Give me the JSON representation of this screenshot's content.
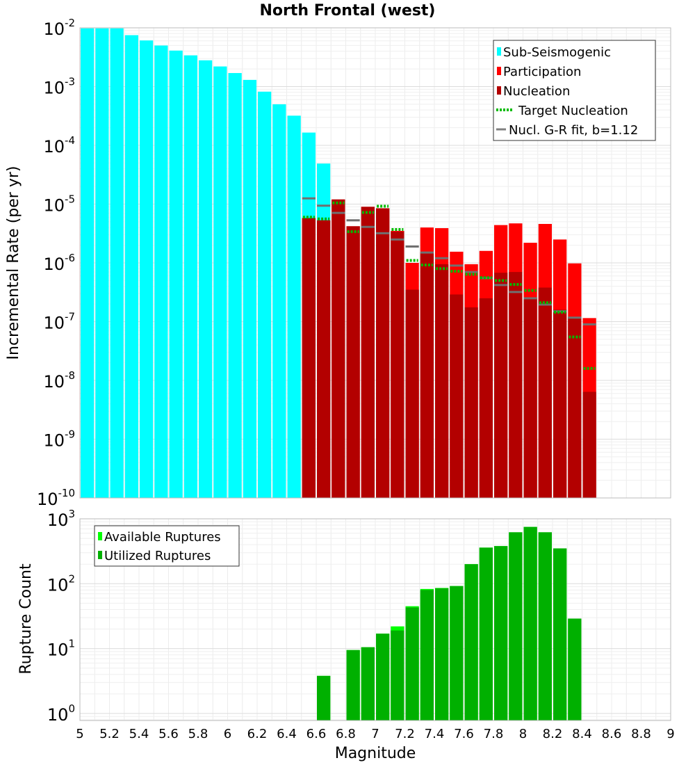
{
  "chart_data": [
    {
      "type": "bar",
      "title": "North Frontal (west)",
      "xlabel": "",
      "ylabel": "Incremental Rate (per yr)",
      "xlim": [
        5,
        9
      ],
      "ylim": [
        1e-10,
        0.01
      ],
      "yscale": "log",
      "ytick_base": "10",
      "ytick_exponents": [
        "-2",
        "-3",
        "-4",
        "-5",
        "-6",
        "-7",
        "-8",
        "-9",
        "-10"
      ],
      "legend": [
        {
          "label": "Sub-Seismogenic",
          "color": "#00ffff",
          "style": "bar"
        },
        {
          "label": "Participation",
          "color": "#ff0000",
          "style": "bar"
        },
        {
          "label": "Nucleation",
          "color": "#b30000",
          "style": "bar"
        },
        {
          "label": "Target Nucleation",
          "color": "#00bb00",
          "style": "dotted"
        },
        {
          "label": "Nucl. G-R fit, b=1.12",
          "color": "#808080",
          "style": "line"
        }
      ],
      "subseismogenic": {
        "x": [
          5.05,
          5.15,
          5.25,
          5.35,
          5.45,
          5.55,
          5.65,
          5.75,
          5.85,
          5.95,
          6.05,
          6.15,
          6.25,
          6.35,
          6.45,
          6.55,
          6.65
        ],
        "values": [
          0.0098,
          0.0098,
          0.0098,
          0.0075,
          0.0061,
          0.005,
          0.0041,
          0.0034,
          0.0028,
          0.0022,
          0.0017,
          0.0013,
          0.00082,
          0.0005,
          0.00032,
          0.000165,
          4.9e-05
        ]
      },
      "participation": {
        "x": [
          6.55,
          6.65,
          6.75,
          6.85,
          6.95,
          7.05,
          7.15,
          7.25,
          7.35,
          7.45,
          7.55,
          7.65,
          7.75,
          7.85,
          7.95,
          8.05,
          8.15,
          8.25,
          8.35,
          8.45
        ],
        "values": [
          5.8e-06,
          5.3e-06,
          1.2e-05,
          4.2e-06,
          9e-06,
          8.5e-06,
          3.5e-06,
          1e-06,
          4e-06,
          3.9e-06,
          1.55e-06,
          9.5e-07,
          1.6e-06,
          4.4e-06,
          4.7e-06,
          2.2e-06,
          4.6e-06,
          2.5e-06,
          9.8e-07,
          1.15e-07
        ]
      },
      "nucleation": {
        "x": [
          6.55,
          6.65,
          6.75,
          6.85,
          6.95,
          7.05,
          7.15,
          7.25,
          7.35,
          7.45,
          7.55,
          7.65,
          7.75,
          7.85,
          7.95,
          8.05,
          8.15,
          8.25,
          8.35,
          8.45
        ],
        "values": [
          5.8e-06,
          5.3e-06,
          1.2e-05,
          4.2e-06,
          9e-06,
          8.5e-06,
          3.4e-06,
          3.5e-07,
          1.5e-06,
          9.5e-07,
          2.9e-07,
          1.75e-07,
          2.5e-07,
          6.8e-07,
          7e-07,
          2.5e-07,
          3.8e-07,
          1.6e-07,
          1.2e-07,
          6.4e-09
        ]
      },
      "target_nucleation": {
        "x": [
          6.55,
          6.65,
          6.75,
          6.85,
          6.95,
          7.05,
          7.15,
          7.25,
          7.35,
          7.45,
          7.55,
          7.65,
          7.75,
          7.85,
          7.95,
          8.05,
          8.15,
          8.25,
          8.35,
          8.45
        ],
        "values": [
          6e-06,
          5.6e-06,
          1.05e-05,
          3.4e-06,
          7.2e-06,
          9.2e-06,
          3.7e-06,
          1.1e-06,
          9.2e-07,
          8e-07,
          7.2e-07,
          6.4e-07,
          5.6e-07,
          5e-07,
          4.3e-07,
          3.4e-07,
          2.1e-07,
          1.45e-07,
          5.5e-08,
          1.6e-08
        ]
      },
      "gr_fit": {
        "x": [
          6.55,
          6.65,
          6.75,
          6.85,
          6.95,
          7.05,
          7.15,
          7.25,
          7.35,
          7.45,
          7.55,
          7.65,
          7.75,
          7.85,
          7.95,
          8.05,
          8.15,
          8.25,
          8.35,
          8.45
        ],
        "values": [
          1.25e-05,
          9.4e-06,
          7.1e-06,
          5.3e-06,
          4.1e-06,
          3.2e-06,
          2.5e-06,
          1.9e-06,
          1.5e-06,
          1.2e-06,
          9e-07,
          7e-07,
          5.5e-07,
          4.2e-07,
          3.2e-07,
          2.5e-07,
          1.95e-07,
          1.5e-07,
          1.17e-07,
          9e-08
        ]
      }
    },
    {
      "type": "bar",
      "title": "",
      "xlabel": "Magnitude",
      "ylabel": "Rupture Count",
      "xlim": [
        5,
        9
      ],
      "ylim": [
        0.78,
        1000
      ],
      "yscale": "log",
      "ytick_base": "10",
      "ytick_exponents": [
        "3",
        "2",
        "1",
        "0"
      ],
      "xticks": [
        "5",
        "5.2",
        "5.4",
        "5.6",
        "5.8",
        "6",
        "6.2",
        "6.4",
        "6.6",
        "6.8",
        "7",
        "7.2",
        "7.4",
        "7.6",
        "7.8",
        "8",
        "8.2",
        "8.4",
        "8.6",
        "8.8",
        "9"
      ],
      "legend": [
        {
          "label": "Available Ruptures",
          "color": "#00ff00",
          "style": "bar"
        },
        {
          "label": "Utilized Ruptures",
          "color": "#00b000",
          "style": "bar"
        }
      ],
      "available": {
        "x": [
          6.65,
          6.85,
          6.95,
          7.05,
          7.15,
          7.25,
          7.35,
          7.45,
          7.55,
          7.65,
          7.75,
          7.85,
          7.95,
          8.05,
          8.15,
          8.25,
          8.35
        ],
        "values": [
          3.8,
          9.5,
          10.5,
          17,
          22,
          45,
          83,
          86,
          92,
          200,
          360,
          380,
          620,
          750,
          620,
          350,
          29
        ]
      },
      "utilized": {
        "x": [
          6.65,
          6.85,
          6.95,
          7.05,
          7.15,
          7.25,
          7.35,
          7.45,
          7.55,
          7.65,
          7.75,
          7.85,
          7.95,
          8.05,
          8.15,
          8.25,
          8.35
        ],
        "values": [
          3.8,
          9.5,
          10.5,
          17,
          19,
          43,
          80,
          85,
          92,
          200,
          360,
          380,
          620,
          750,
          620,
          350,
          29
        ]
      }
    }
  ]
}
